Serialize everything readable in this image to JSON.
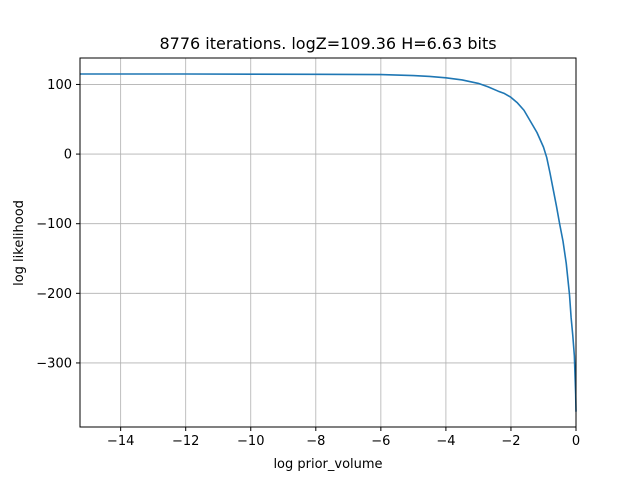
{
  "chart_data": {
    "type": "line",
    "title": "8776 iterations. logZ=109.36 H=6.63 bits",
    "xlabel": "log prior_volume",
    "ylabel": "log likelihood",
    "xlim": [
      -15.25,
      0
    ],
    "ylim": [
      -392,
      138
    ],
    "xticks": [
      -14,
      -12,
      -10,
      -8,
      -6,
      -4,
      -2,
      0
    ],
    "xtick_labels": [
      "−14",
      "−12",
      "−10",
      "−8",
      "−6",
      "−4",
      "−2",
      "0"
    ],
    "yticks": [
      100,
      0,
      -100,
      -200,
      -300
    ],
    "ytick_labels": [
      "100",
      "0",
      "−100",
      "−200",
      "−300"
    ],
    "grid": true,
    "series": [
      {
        "color": "#1f77b4",
        "x": [
          -15.25,
          -12,
          -10,
          -8,
          -7,
          -6,
          -5.5,
          -5,
          -4.5,
          -4,
          -3.5,
          -3,
          -2.7,
          -2.4,
          -2.2,
          -2,
          -1.8,
          -1.6,
          -1.4,
          -1.2,
          -1.0,
          -0.9,
          -0.8,
          -0.7,
          -0.6,
          -0.5,
          -0.4,
          -0.3,
          -0.2,
          -0.15,
          -0.1,
          -0.05,
          -0.03,
          -0.01,
          0
        ],
        "y": [
          115,
          115,
          114.8,
          114.5,
          114.4,
          114.2,
          113.5,
          112.8,
          111.5,
          109.5,
          106.5,
          101.5,
          96.5,
          90.5,
          87,
          81.5,
          73.5,
          63,
          47,
          31,
          10,
          -5,
          -27,
          -51,
          -75,
          -101,
          -125,
          -157,
          -202,
          -235,
          -260,
          -290,
          -318,
          -345,
          -370
        ]
      }
    ]
  }
}
